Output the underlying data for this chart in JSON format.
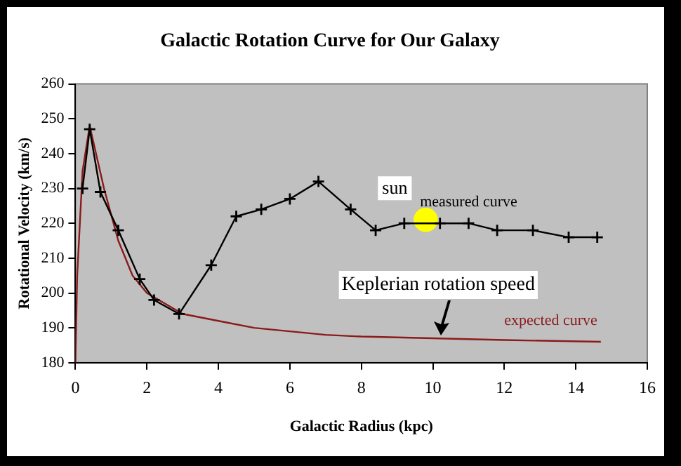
{
  "chart_data": {
    "type": "line",
    "title": "Galactic Rotation Curve for Our Galaxy",
    "xlabel": "Galactic Radius (kpc)",
    "ylabel": "Rotational Velocity (km/s)",
    "xlim": [
      0,
      16
    ],
    "xticks": [
      0,
      2,
      4,
      6,
      8,
      10,
      12,
      14,
      16
    ],
    "ylim": [
      180,
      260
    ],
    "yticks": [
      180,
      190,
      200,
      210,
      220,
      230,
      240,
      250,
      260
    ],
    "grid": false,
    "legend": false,
    "series": [
      {
        "name": "measured curve",
        "color": "#000000",
        "marker": "cross",
        "x": [
          0.2,
          0.4,
          0.7,
          1.2,
          1.8,
          2.2,
          2.9,
          3.8,
          4.5,
          5.2,
          6.0,
          6.8,
          7.7,
          8.4,
          9.2,
          10.2,
          11.0,
          11.8,
          12.8,
          13.8,
          14.6
        ],
        "values": [
          230,
          247,
          229,
          218,
          204,
          198,
          194,
          208,
          222,
          224,
          227,
          232,
          224,
          218,
          220,
          220,
          220,
          218,
          218,
          216,
          216
        ]
      },
      {
        "name": "expected curve",
        "color": "#8b1a1a",
        "marker": "none",
        "x": [
          0,
          0.05,
          0.2,
          0.4,
          0.8,
          1.2,
          1.6,
          2,
          3,
          4,
          5,
          6,
          7,
          8,
          10,
          12,
          14.7
        ],
        "values": [
          180,
          205,
          235,
          248,
          230,
          215,
          205,
          200,
          194,
          192,
          190,
          189,
          188,
          187.5,
          187,
          186.5,
          186
        ]
      },
      {
        "type": "scatter",
        "color": "#ffff00",
        "marker": "circle",
        "x": [
          9.8
        ],
        "values": [
          221
        ]
      }
    ],
    "annotations": [
      {
        "text": "sun",
        "x": 9.8,
        "y": 221
      },
      {
        "text": "Keplerian rotation speed",
        "x": 10.2,
        "y": 187
      }
    ]
  }
}
